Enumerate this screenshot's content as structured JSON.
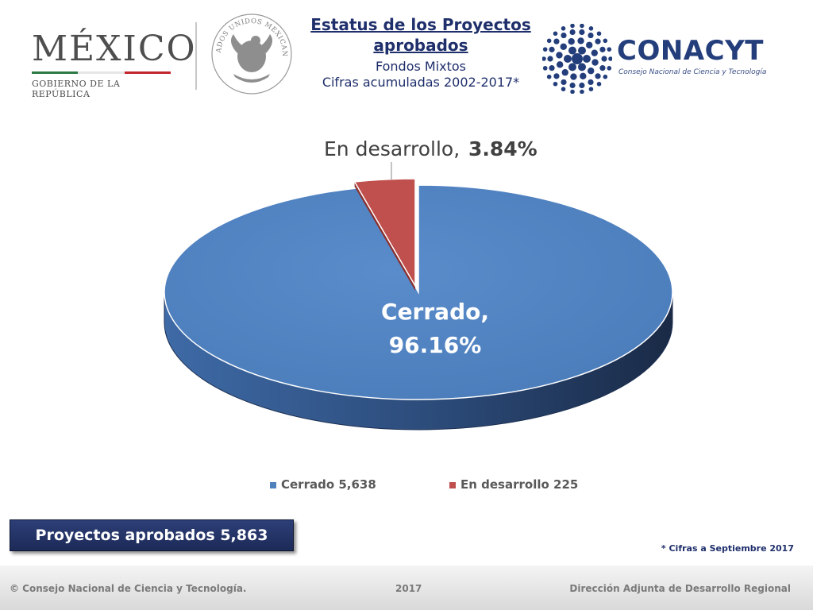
{
  "header": {
    "mexico_word": "MÉXICO",
    "mexico_sub": "GOBIERNO DE LA REPÚBLICA",
    "flag_colors": [
      "#2d7a46",
      "#ffffff",
      "#c3252c"
    ],
    "seal_text": "ESTADOS UNIDOS MEXICANOS",
    "title": "Estatus de los Proyectos aprobados",
    "subtitle1": "Fondos  Mixtos",
    "subtitle2": "Cifras acumuladas 2002-2017*",
    "conacyt_name": "CONACYT",
    "conacyt_tagline": "Consejo Nacional de Ciencia y Tecnología"
  },
  "chart_data": {
    "type": "pie",
    "title": "",
    "slices": [
      {
        "name": "Cerrado",
        "value": 5638,
        "percent": "96.16%",
        "color": "#4f81bd",
        "legend_label": "Cerrado",
        "legend_value": "5,638"
      },
      {
        "name": "En desarrollo",
        "value": 225,
        "percent": "3.84%",
        "color": "#c0504d",
        "legend_label": "En desarrollo",
        "legend_value": "225"
      }
    ],
    "labels": {
      "cerrado_line1": "Cerrado,",
      "cerrado_line2": "96.16%",
      "desarrollo_name": "En desarrollo,",
      "desarrollo_pct": "3.84%"
    },
    "legend_position": "bottom"
  },
  "summary": {
    "label": "Proyectos aprobados 5,863"
  },
  "footnote": "* Cifras a Septiembre 2017",
  "footer": {
    "left": "© Consejo Nacional de Ciencia y Tecnología.",
    "middle": "2017",
    "right": "Dirección Adjunta de Desarrollo Regional"
  }
}
